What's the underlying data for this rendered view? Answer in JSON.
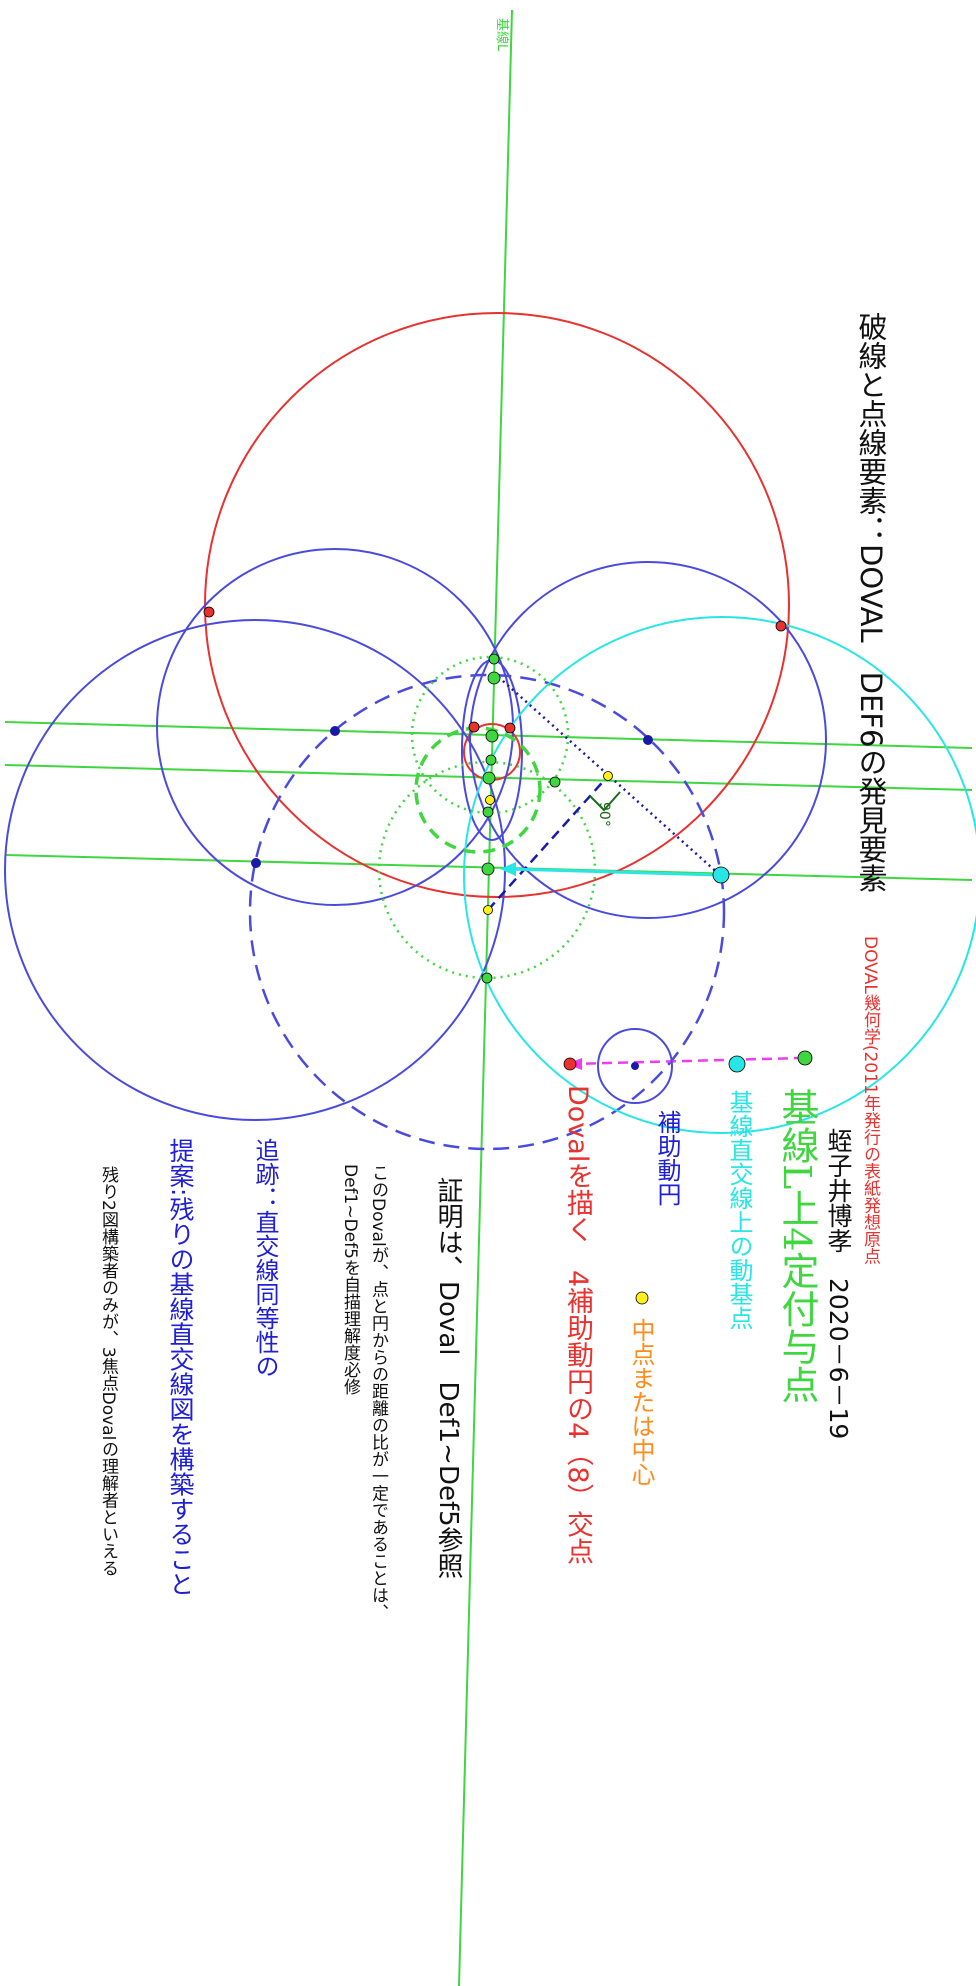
{
  "baseline_label": "基線L",
  "texts": {
    "title": "破線と点線要素：DOVAL　DEF6の発見要素",
    "doval_origin": "DOVAL幾何学(2011年発行の表紙発想原点",
    "author": "蛭子井博孝　2020－6－19",
    "fixed_points": "基線L上4定付与点",
    "moving_point": "基線直交線上の動基点",
    "aux_circle": "補助動円",
    "midpoint": "中点または中心",
    "draw_doval": "Dovalを描く",
    "intersections": "4補助動円の4（8）交点",
    "proof": "証明は、Doval　Def1~Def5参照",
    "note_line1": "このDovalが、点と円からの距離の比が一定であることは、",
    "note_line2": "Def1~Def5を自描理解度必修",
    "trace": "追跡：直交線同等性の",
    "proposal": "提案:残りの基線直交線図を構築すること",
    "remaining": "残り2図構築者のみが、3焦点Dovalの理解者といえる",
    "angle": "90°"
  },
  "colors": {
    "baseline": "#3fd63f",
    "red": "#e8322f",
    "blue": "#4a4adf",
    "cyan": "#28e6e6",
    "navy": "#1a1aa8",
    "magenta": "#f03cf0",
    "yellow": "#ffef1a",
    "orange": "#ff8c1a",
    "text_blue": "#1f1fd6",
    "text_green": "#3fd63f"
  }
}
